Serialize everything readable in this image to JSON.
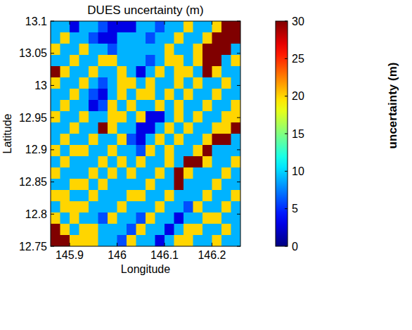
{
  "chart_data": {
    "type": "heatmap",
    "title": "DUES uncertainty (m)",
    "x_label": "Longitude",
    "y_label": "Latitude",
    "x": [
      145.87,
      145.89,
      145.91,
      145.93,
      145.95,
      145.97,
      145.99,
      146.01,
      146.03,
      146.05,
      146.07,
      146.09,
      146.11,
      146.13,
      146.15,
      146.17,
      146.19,
      146.21,
      146.23,
      146.25
    ],
    "y": [
      13.09125,
      13.07375,
      13.05625,
      13.03875,
      13.02125,
      13.00375,
      12.98625,
      12.96875,
      12.95125,
      12.93375,
      12.91625,
      12.89875,
      12.88125,
      12.86375,
      12.84625,
      12.82875,
      12.81125,
      12.79375,
      12.77625,
      12.75875
    ],
    "cells": [
      [
        9,
        9,
        3,
        9,
        9,
        6,
        3,
        3,
        3,
        9,
        9,
        6,
        9,
        9,
        20,
        9,
        9,
        20,
        30,
        30
      ],
      [
        9,
        20,
        9,
        9,
        6,
        3,
        3,
        9,
        9,
        9,
        6,
        9,
        9,
        20,
        9,
        9,
        20,
        30,
        30,
        30
      ],
      [
        20,
        9,
        9,
        20,
        9,
        9,
        6,
        9,
        9,
        9,
        9,
        9,
        20,
        9,
        9,
        20,
        30,
        30,
        30,
        9
      ],
      [
        9,
        9,
        20,
        9,
        9,
        20,
        20,
        9,
        9,
        9,
        6,
        9,
        20,
        20,
        9,
        20,
        30,
        30,
        9,
        20
      ],
      [
        30,
        20,
        9,
        9,
        20,
        9,
        9,
        20,
        9,
        3,
        9,
        20,
        9,
        20,
        20,
        9,
        30,
        20,
        9,
        9
      ],
      [
        20,
        9,
        9,
        20,
        9,
        6,
        9,
        20,
        20,
        9,
        20,
        9,
        9,
        20,
        9,
        20,
        9,
        9,
        20,
        9
      ],
      [
        9,
        9,
        20,
        9,
        6,
        3,
        9,
        20,
        9,
        20,
        20,
        9,
        20,
        9,
        20,
        9,
        9,
        20,
        9,
        9
      ],
      [
        9,
        20,
        9,
        9,
        3,
        6,
        20,
        9,
        20,
        9,
        9,
        20,
        9,
        20,
        9,
        9,
        20,
        9,
        9,
        20
      ],
      [
        20,
        9,
        9,
        20,
        9,
        9,
        20,
        20,
        9,
        20,
        3,
        3,
        9,
        20,
        9,
        20,
        9,
        9,
        20,
        20
      ],
      [
        9,
        9,
        20,
        9,
        9,
        30,
        20,
        9,
        9,
        3,
        3,
        9,
        20,
        9,
        20,
        9,
        9,
        20,
        20,
        30
      ],
      [
        9,
        20,
        9,
        9,
        20,
        9,
        9,
        20,
        6,
        3,
        9,
        20,
        9,
        20,
        9,
        9,
        20,
        30,
        30,
        9
      ],
      [
        20,
        9,
        20,
        20,
        9,
        9,
        20,
        9,
        9,
        6,
        20,
        9,
        20,
        9,
        9,
        20,
        30,
        9,
        9,
        9
      ],
      [
        9,
        20,
        9,
        9,
        9,
        20,
        9,
        20,
        9,
        20,
        9,
        9,
        20,
        9,
        30,
        30,
        20,
        9,
        9,
        20
      ],
      [
        20,
        9,
        9,
        9,
        20,
        9,
        20,
        9,
        20,
        9,
        9,
        20,
        9,
        30,
        20,
        9,
        9,
        9,
        20,
        9
      ],
      [
        9,
        9,
        20,
        20,
        9,
        20,
        9,
        9,
        9,
        9,
        20,
        9,
        9,
        30,
        9,
        9,
        9,
        20,
        9,
        9
      ],
      [
        20,
        20,
        9,
        9,
        20,
        9,
        9,
        9,
        20,
        20,
        9,
        9,
        20,
        9,
        9,
        9,
        20,
        9,
        9,
        20
      ],
      [
        9,
        20,
        20,
        20,
        9,
        9,
        9,
        20,
        9,
        9,
        9,
        20,
        9,
        9,
        6,
        20,
        9,
        9,
        20,
        9
      ],
      [
        20,
        9,
        20,
        9,
        9,
        6,
        20,
        9,
        9,
        6,
        20,
        9,
        9,
        3,
        9,
        9,
        20,
        20,
        9,
        9
      ],
      [
        30,
        20,
        9,
        20,
        20,
        9,
        9,
        9,
        6,
        20,
        9,
        9,
        3,
        9,
        20,
        20,
        9,
        9,
        20,
        9
      ],
      [
        30,
        30,
        20,
        20,
        20,
        9,
        9,
        6,
        20,
        9,
        9,
        3,
        9,
        20,
        20,
        9,
        9,
        20,
        9,
        9
      ]
    ],
    "xlim": [
      145.86,
      146.26
    ],
    "ylim": [
      12.75,
      13.1
    ],
    "xticks": [
      145.9,
      146,
      146.1,
      146.2
    ],
    "yticks": [
      12.75,
      12.8,
      12.85,
      12.9,
      12.95,
      13,
      13.05,
      13.1
    ],
    "colorbar": {
      "label": "uncertainty (m)",
      "range": [
        0,
        30
      ],
      "ticks": [
        0,
        5,
        10,
        15,
        20,
        25,
        30
      ]
    }
  }
}
